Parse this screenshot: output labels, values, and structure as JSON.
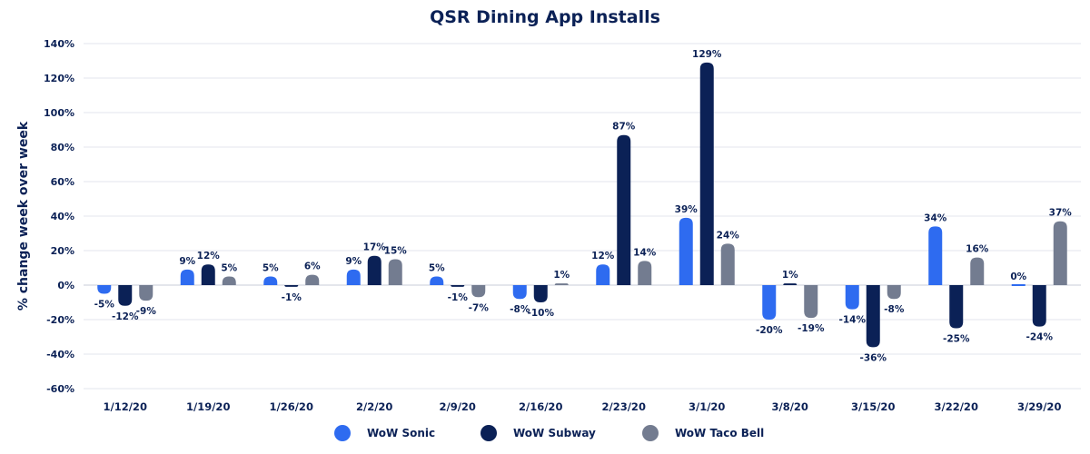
{
  "chart_data": {
    "type": "bar",
    "title": "QSR Dining App Installs",
    "ylabel": "% change week over week",
    "xlabel": "",
    "ylim": [
      -60,
      140
    ],
    "yticks": [
      -60,
      -40,
      -20,
      0,
      20,
      40,
      60,
      80,
      100,
      120,
      140
    ],
    "ytick_labels": [
      "-60%",
      "-40%",
      "-20%",
      "0%",
      "20%",
      "40%",
      "60%",
      "80%",
      "100%",
      "120%",
      "140%"
    ],
    "grid": true,
    "legend_position": "bottom",
    "categories": [
      "1/12/20",
      "1/19/20",
      "1/26/20",
      "2/2/20",
      "2/9/20",
      "2/16/20",
      "2/23/20",
      "3/1/20",
      "3/8/20",
      "3/15/20",
      "3/22/20",
      "3/29/20"
    ],
    "series": [
      {
        "name": "WoW Sonic",
        "color": "#2e6bf0",
        "values": [
          -5,
          9,
          5,
          9,
          5,
          -8,
          12,
          39,
          -20,
          -14,
          34,
          0
        ],
        "labels": [
          "-5%",
          "9%",
          "5%",
          "9%",
          "5%",
          "-8%",
          "12%",
          "39%",
          "-20%",
          "-14%",
          "34%",
          "0%"
        ]
      },
      {
        "name": "WoW Subway",
        "color": "#0b2156",
        "values": [
          -12,
          12,
          -1,
          17,
          -1,
          -10,
          87,
          129,
          1,
          -36,
          -25,
          -24
        ],
        "labels": [
          "-12%",
          "12%",
          "-1%",
          "17%",
          "-1%",
          "-10%",
          "87%",
          "129%",
          "1%",
          "-36%",
          "-25%",
          "-24%"
        ]
      },
      {
        "name": "WoW Taco Bell",
        "color": "#737c90",
        "values": [
          -9,
          5,
          6,
          15,
          -7,
          1,
          14,
          24,
          -19,
          -8,
          16,
          37
        ],
        "labels": [
          "-9%",
          "5%",
          "6%",
          "15%",
          "-7%",
          "1%",
          "14%",
          "24%",
          "-19%",
          "-8%",
          "16%",
          "37%"
        ]
      }
    ]
  }
}
